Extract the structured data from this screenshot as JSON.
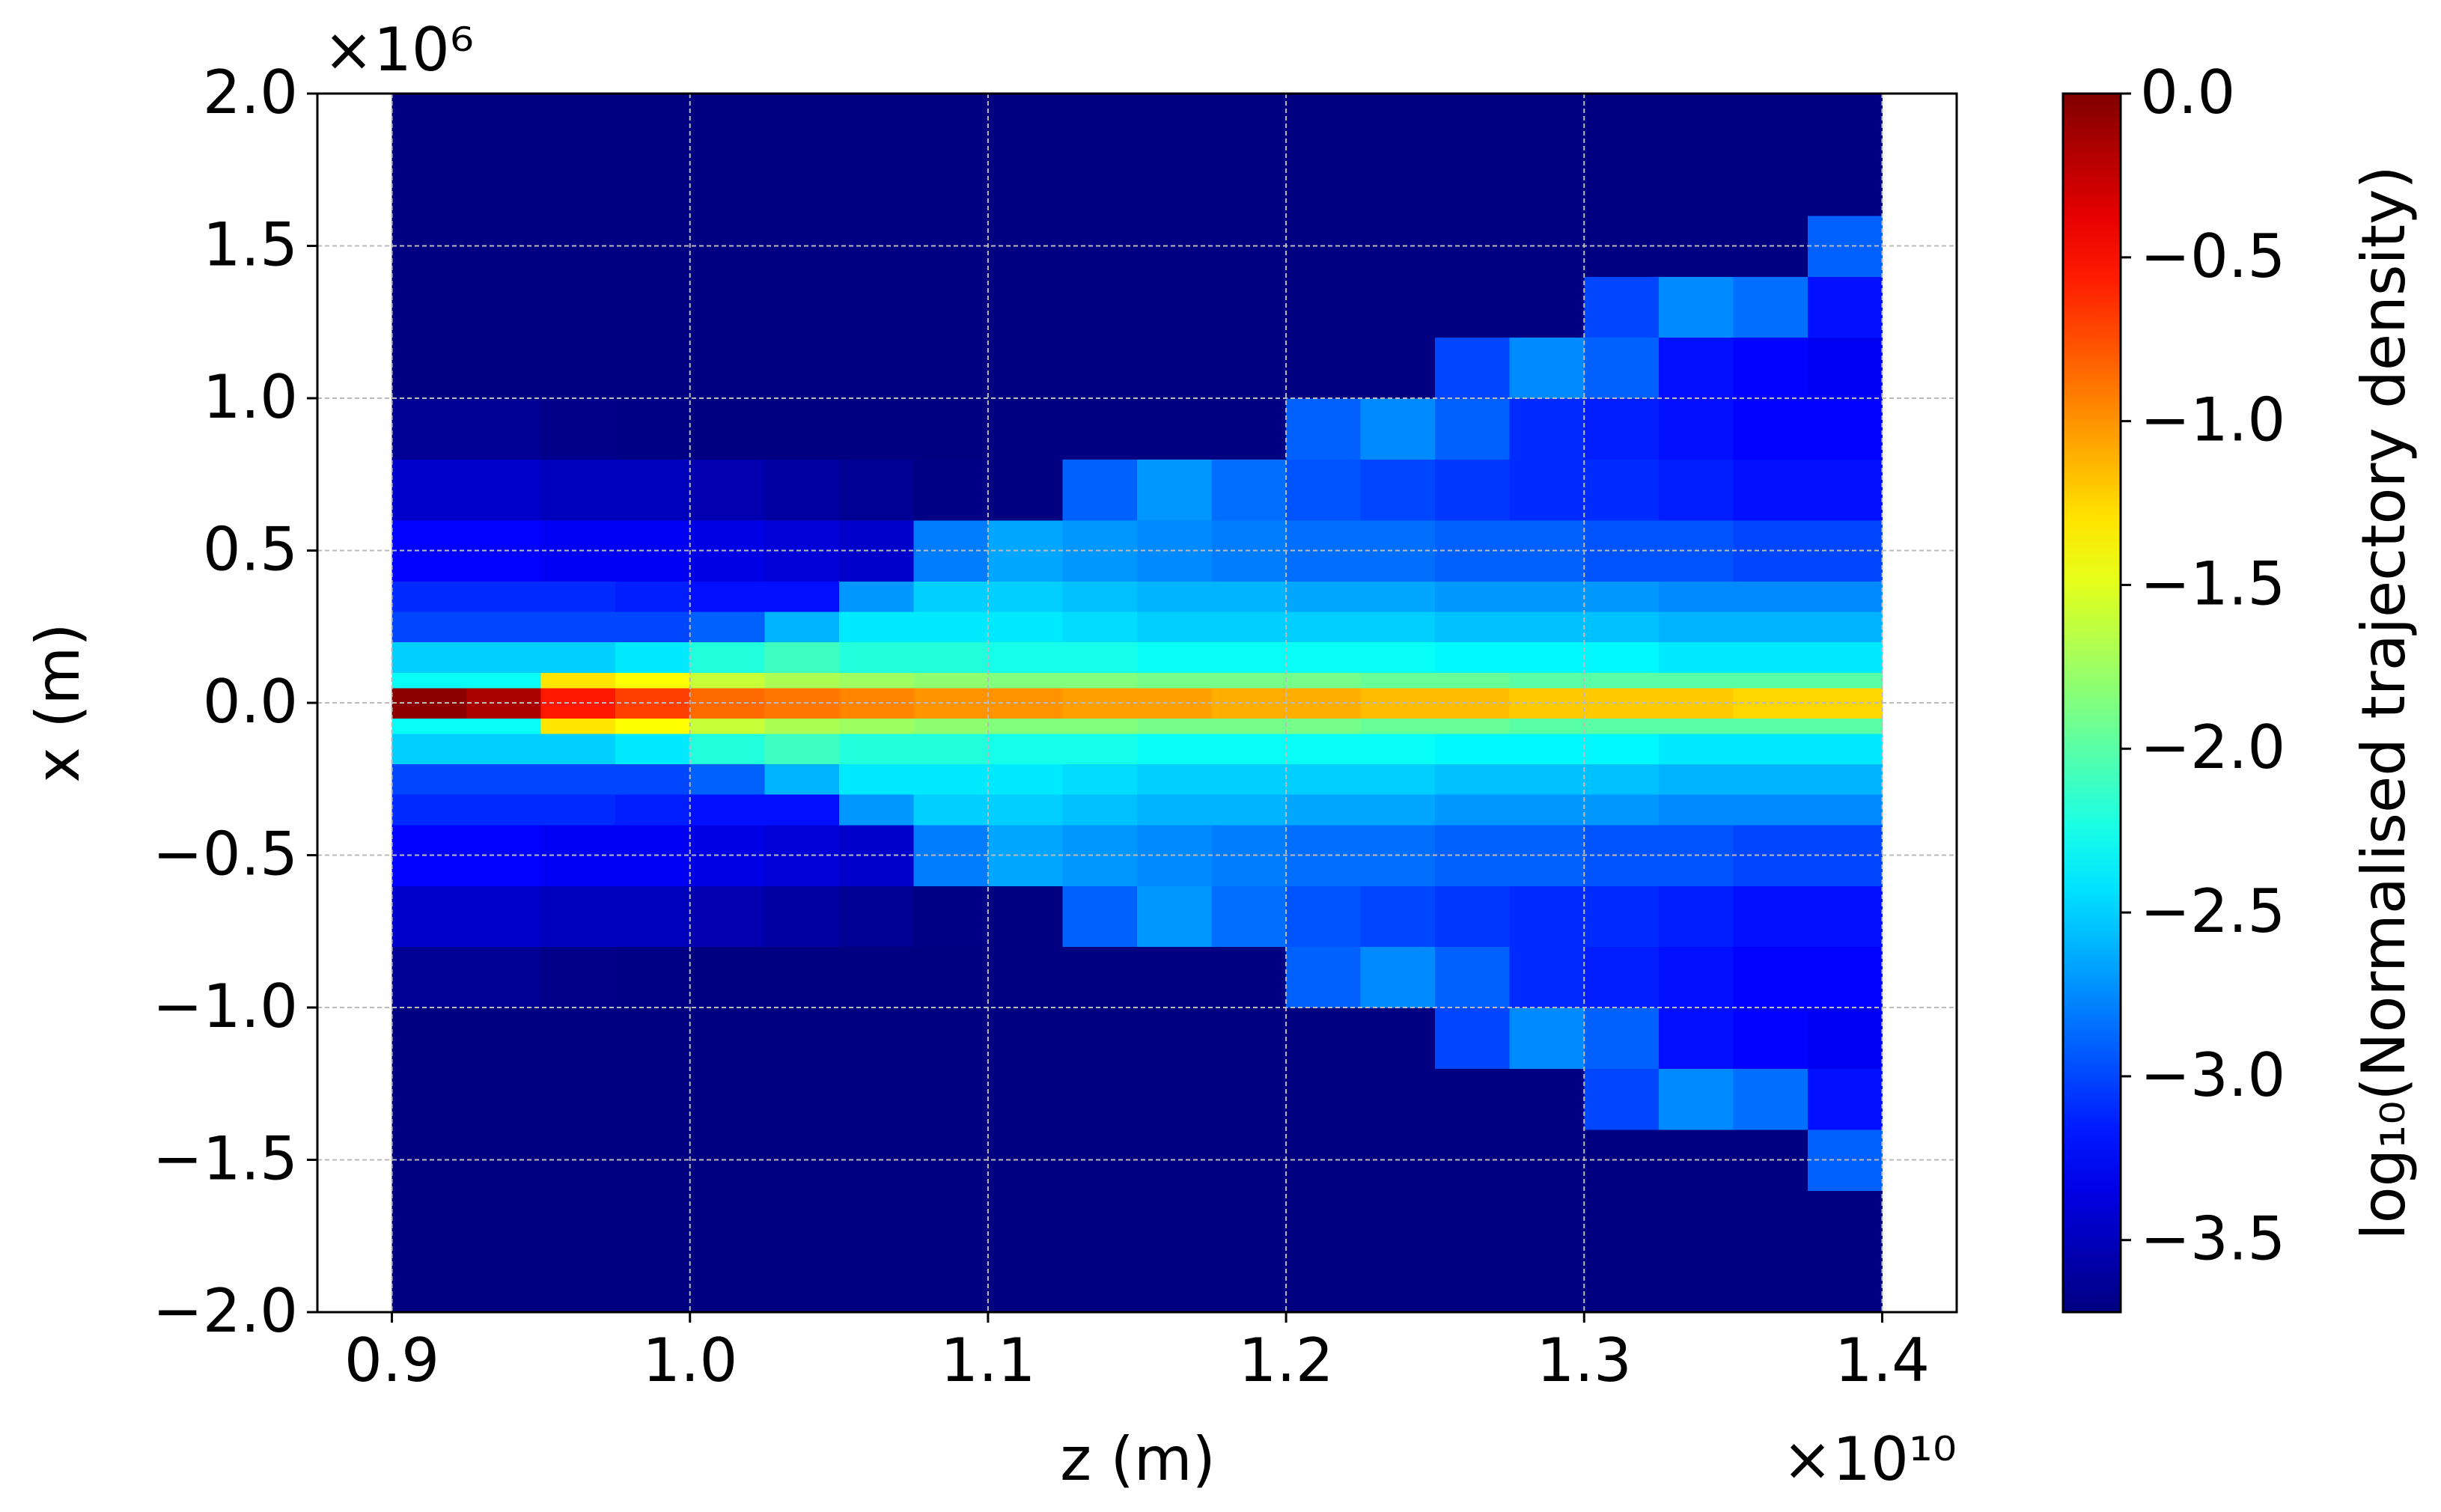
{
  "chart_data": {
    "type": "heatmap",
    "xlabel": "z (m)",
    "ylabel": "x (m)",
    "x_offset_label": "×10¹⁰",
    "y_offset_label": "×10⁶",
    "colorbar_label": "log₁₀(Normalised trajectory density)",
    "colormap": "jet",
    "grid": true,
    "xlim": [
      0.875,
      1.425
    ],
    "ylim": [
      -2.0,
      2.0
    ],
    "xticks": [
      0.9,
      {
        "value": 1.0,
        "label": "1.0"
      },
      1.1,
      1.2,
      1.3,
      1.4
    ],
    "yticks": [
      {
        "value": -2.0,
        "label": "−2.0"
      },
      {
        "value": -1.5,
        "label": "−1.5"
      },
      {
        "value": -1.0,
        "label": "−1.0"
      },
      {
        "value": -0.5,
        "label": "−0.5"
      },
      {
        "value": 0.0,
        "label": "0.0"
      },
      0.5,
      {
        "value": 1.0,
        "label": "1.0"
      },
      1.5,
      {
        "value": 2.0,
        "label": "2.0"
      }
    ],
    "clim": [
      -3.72,
      0.0
    ],
    "cticks": [
      {
        "value": 0.0,
        "label": "0.0"
      },
      {
        "value": -0.5,
        "label": "−0.5"
      },
      {
        "value": -1.0,
        "label": "−1.0"
      },
      {
        "value": -1.5,
        "label": "−1.5"
      },
      {
        "value": -2.0,
        "label": "−2.0"
      },
      {
        "value": -2.5,
        "label": "−2.5"
      },
      {
        "value": -3.0,
        "label": "−3.0"
      },
      {
        "value": -3.5,
        "label": "−3.5"
      }
    ],
    "x_edges": [
      0.9,
      0.925,
      0.95,
      0.975,
      1.0,
      1.025,
      1.05,
      1.075,
      1.1,
      1.125,
      1.15,
      1.175,
      1.2,
      1.225,
      1.25,
      1.275,
      1.3,
      1.325,
      1.35,
      1.375,
      1.4
    ],
    "y_edges": [
      -2.0,
      -1.6,
      -1.4,
      -1.2,
      -1.0,
      -0.8,
      -0.6,
      -0.4,
      -0.3,
      -0.2,
      -0.1,
      -0.05,
      0.05,
      0.1,
      0.2,
      0.3,
      0.4,
      0.6,
      0.8,
      1.0,
      1.2,
      1.4,
      1.6,
      2.0
    ],
    "values": [
      [
        -3.72,
        -3.72,
        -3.72,
        -3.72,
        -3.72,
        -3.72,
        -3.72,
        -3.72,
        -3.72,
        -3.72,
        -3.72,
        -3.72,
        -3.72,
        -3.72,
        -3.72,
        -3.72,
        -3.72,
        -3.72,
        -3.72,
        -3.72
      ],
      [
        -3.72,
        -3.72,
        -3.72,
        -3.72,
        -3.72,
        -3.72,
        -3.72,
        -3.72,
        -3.72,
        -3.72,
        -3.72,
        -3.72,
        -3.72,
        -3.72,
        -3.72,
        -3.72,
        -3.72,
        -3.72,
        -3.72,
        -2.9
      ],
      [
        -3.72,
        -3.72,
        -3.72,
        -3.72,
        -3.72,
        -3.72,
        -3.72,
        -3.72,
        -3.72,
        -3.72,
        -3.72,
        -3.72,
        -3.72,
        -3.72,
        -3.72,
        -3.72,
        -3.0,
        -2.75,
        -2.85,
        -3.2
      ],
      [
        -3.72,
        -3.72,
        -3.72,
        -3.72,
        -3.72,
        -3.72,
        -3.72,
        -3.72,
        -3.72,
        -3.72,
        -3.72,
        -3.72,
        -3.72,
        -3.72,
        -3.0,
        -2.75,
        -2.9,
        -3.2,
        -3.25,
        -3.3
      ],
      [
        -3.65,
        -3.65,
        -3.68,
        -3.7,
        -3.72,
        -3.72,
        -3.72,
        -3.72,
        -3.72,
        -3.72,
        -3.72,
        -3.72,
        -2.9,
        -2.75,
        -2.9,
        -3.1,
        -3.15,
        -3.2,
        -3.25,
        -3.25
      ],
      [
        -3.45,
        -3.45,
        -3.5,
        -3.5,
        -3.55,
        -3.6,
        -3.65,
        -3.7,
        -3.72,
        -2.9,
        -2.7,
        -2.85,
        -2.95,
        -3.0,
        -3.05,
        -3.1,
        -3.1,
        -3.15,
        -3.2,
        -3.2
      ],
      [
        -3.25,
        -3.25,
        -3.3,
        -3.3,
        -3.35,
        -3.4,
        -3.45,
        -2.8,
        -2.65,
        -2.7,
        -2.75,
        -2.8,
        -2.85,
        -2.85,
        -2.9,
        -2.9,
        -2.95,
        -2.95,
        -3.0,
        -3.0
      ],
      [
        -3.1,
        -3.1,
        -3.1,
        -3.15,
        -3.2,
        -3.2,
        -2.7,
        -2.5,
        -2.5,
        -2.55,
        -2.6,
        -2.6,
        -2.65,
        -2.65,
        -2.7,
        -2.7,
        -2.7,
        -2.75,
        -2.75,
        -2.75
      ],
      [
        -3.0,
        -3.0,
        -3.0,
        -3.0,
        -2.9,
        -2.6,
        -2.4,
        -2.4,
        -2.4,
        -2.45,
        -2.5,
        -2.5,
        -2.5,
        -2.5,
        -2.55,
        -2.55,
        -2.55,
        -2.6,
        -2.6,
        -2.6
      ],
      [
        -2.5,
        -2.5,
        -2.5,
        -2.4,
        -2.2,
        -2.1,
        -2.2,
        -2.2,
        -2.25,
        -2.25,
        -2.3,
        -2.3,
        -2.3,
        -2.3,
        -2.35,
        -2.35,
        -2.35,
        -2.4,
        -2.4,
        -2.4
      ],
      [
        -2.3,
        -2.3,
        -1.3,
        -1.4,
        -1.6,
        -1.7,
        -1.75,
        -1.8,
        -1.85,
        -1.85,
        -1.9,
        -1.9,
        -1.9,
        -1.95,
        -1.95,
        -2.0,
        -2.0,
        -2.0,
        -2.0,
        -2.0
      ],
      [
        -0.05,
        -0.15,
        -0.55,
        -0.7,
        -0.85,
        -0.9,
        -0.95,
        -1.0,
        -1.0,
        -1.05,
        -1.05,
        -1.1,
        -1.1,
        -1.15,
        -1.15,
        -1.2,
        -1.2,
        -1.2,
        -1.25,
        -1.25
      ],
      [
        -2.3,
        -2.3,
        -1.3,
        -1.4,
        -1.6,
        -1.7,
        -1.75,
        -1.8,
        -1.85,
        -1.85,
        -1.9,
        -1.9,
        -1.9,
        -1.95,
        -1.95,
        -2.0,
        -2.0,
        -2.0,
        -2.0,
        -2.0
      ],
      [
        -2.5,
        -2.5,
        -2.5,
        -2.4,
        -2.2,
        -2.1,
        -2.2,
        -2.2,
        -2.25,
        -2.25,
        -2.3,
        -2.3,
        -2.3,
        -2.3,
        -2.35,
        -2.35,
        -2.35,
        -2.4,
        -2.4,
        -2.4
      ],
      [
        -3.0,
        -3.0,
        -3.0,
        -3.0,
        -2.9,
        -2.6,
        -2.4,
        -2.4,
        -2.4,
        -2.45,
        -2.5,
        -2.5,
        -2.5,
        -2.5,
        -2.55,
        -2.55,
        -2.55,
        -2.6,
        -2.6,
        -2.6
      ],
      [
        -3.1,
        -3.1,
        -3.1,
        -3.15,
        -3.2,
        -3.2,
        -2.7,
        -2.5,
        -2.5,
        -2.55,
        -2.6,
        -2.6,
        -2.65,
        -2.65,
        -2.7,
        -2.7,
        -2.7,
        -2.75,
        -2.75,
        -2.75
      ],
      [
        -3.25,
        -3.25,
        -3.3,
        -3.3,
        -3.35,
        -3.4,
        -3.45,
        -2.8,
        -2.65,
        -2.7,
        -2.75,
        -2.8,
        -2.85,
        -2.85,
        -2.9,
        -2.9,
        -2.95,
        -2.95,
        -3.0,
        -3.0
      ],
      [
        -3.45,
        -3.45,
        -3.5,
        -3.5,
        -3.55,
        -3.6,
        -3.65,
        -3.7,
        -3.72,
        -2.9,
        -2.7,
        -2.85,
        -2.95,
        -3.0,
        -3.05,
        -3.1,
        -3.1,
        -3.15,
        -3.2,
        -3.2
      ],
      [
        -3.65,
        -3.65,
        -3.68,
        -3.7,
        -3.72,
        -3.72,
        -3.72,
        -3.72,
        -3.72,
        -3.72,
        -3.72,
        -3.72,
        -2.9,
        -2.75,
        -2.9,
        -3.1,
        -3.15,
        -3.2,
        -3.25,
        -3.25
      ],
      [
        -3.72,
        -3.72,
        -3.72,
        -3.72,
        -3.72,
        -3.72,
        -3.72,
        -3.72,
        -3.72,
        -3.72,
        -3.72,
        -3.72,
        -3.72,
        -3.72,
        -3.0,
        -2.75,
        -2.9,
        -3.2,
        -3.25,
        -3.3
      ],
      [
        -3.72,
        -3.72,
        -3.72,
        -3.72,
        -3.72,
        -3.72,
        -3.72,
        -3.72,
        -3.72,
        -3.72,
        -3.72,
        -3.72,
        -3.72,
        -3.72,
        -3.72,
        -3.72,
        -3.0,
        -2.75,
        -2.85,
        -3.2
      ],
      [
        -3.72,
        -3.72,
        -3.72,
        -3.72,
        -3.72,
        -3.72,
        -3.72,
        -3.72,
        -3.72,
        -3.72,
        -3.72,
        -3.72,
        -3.72,
        -3.72,
        -3.72,
        -3.72,
        -3.72,
        -3.72,
        -3.72,
        -2.9
      ],
      [
        -3.72,
        -3.72,
        -3.72,
        -3.72,
        -3.72,
        -3.72,
        -3.72,
        -3.72,
        -3.72,
        -3.72,
        -3.72,
        -3.72,
        -3.72,
        -3.72,
        -3.72,
        -3.72,
        -3.72,
        -3.72,
        -3.72,
        -3.72
      ]
    ]
  }
}
